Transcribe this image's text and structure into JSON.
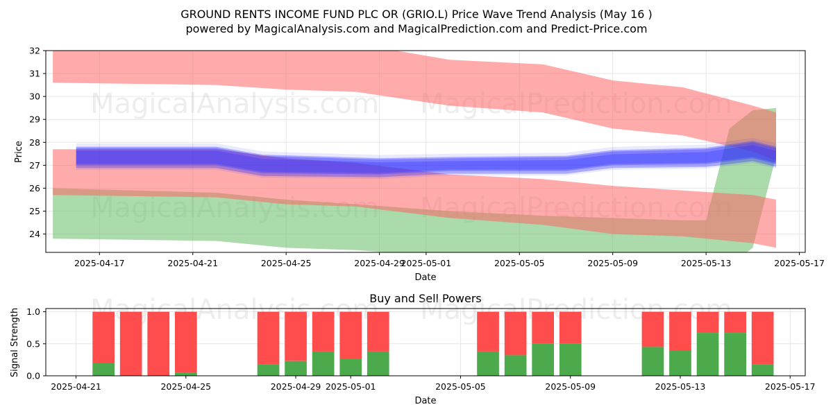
{
  "header": {
    "title_line1": "GROUND RENTS INCOME FUND PLC OR (GRIO.L) Price Wave Trend Analysis (May 16 )",
    "title_line2": "powered by MagicalAnalysis.com and MagicalPrediction.com and Predict-Price.com"
  },
  "watermarks": {
    "a": "MagicalAnalysis.com",
    "b": "MagicalPrediction.com"
  },
  "colors": {
    "red_band": "#ff6666",
    "green_band": "#66bb66",
    "blue_band": "#3333ff",
    "buy": "#4caa4c",
    "sell": "#ff4c4c"
  },
  "chart_data": [
    {
      "type": "area",
      "title": "",
      "xlabel": "Date",
      "ylabel": "Price",
      "xlim": [
        "2025-04-15",
        "2025-05-17"
      ],
      "ylim": [
        23.2,
        32
      ],
      "yticks": [
        24,
        25,
        26,
        27,
        28,
        29,
        30,
        31,
        32
      ],
      "xticks": [
        "2025-04-17",
        "2025-04-21",
        "2025-04-25",
        "2025-04-29",
        "2025-05-01",
        "2025-05-05",
        "2025-05-09",
        "2025-05-13",
        "2025-05-17"
      ],
      "grid": true,
      "series": [
        {
          "role": "upper-red-band",
          "x": [
            "2025-04-15",
            "2025-04-22",
            "2025-04-25",
            "2025-04-28",
            "2025-05-02",
            "2025-05-06",
            "2025-05-09",
            "2025-05-12",
            "2025-05-15",
            "2025-05-16"
          ],
          "upper": [
            32.5,
            32.5,
            32.4,
            32.3,
            31.6,
            31.4,
            30.7,
            30.4,
            29.6,
            29.3
          ],
          "lower": [
            30.6,
            30.5,
            30.3,
            30.2,
            29.6,
            29.3,
            28.6,
            28.3,
            27.6,
            27.2
          ]
        },
        {
          "role": "lower-red-band",
          "x": [
            "2025-04-15",
            "2025-04-22",
            "2025-04-25",
            "2025-04-28",
            "2025-05-02",
            "2025-05-06",
            "2025-05-09",
            "2025-05-12",
            "2025-05-15",
            "2025-05-16"
          ],
          "upper": [
            27.7,
            27.7,
            27.3,
            27.1,
            26.6,
            26.4,
            26.1,
            25.9,
            25.7,
            25.5
          ],
          "lower": [
            25.7,
            25.6,
            25.3,
            25.2,
            24.7,
            24.4,
            24.0,
            23.9,
            23.6,
            23.4
          ]
        },
        {
          "role": "green-band",
          "x": [
            "2025-04-15",
            "2025-04-22",
            "2025-04-25",
            "2025-04-28",
            "2025-05-02",
            "2025-05-06",
            "2025-05-09",
            "2025-05-12",
            "2025-05-13",
            "2025-05-14",
            "2025-05-15",
            "2025-05-16"
          ],
          "upper": [
            26.0,
            25.8,
            25.5,
            25.3,
            25.0,
            24.8,
            24.7,
            24.6,
            24.6,
            28.6,
            29.4,
            29.5
          ],
          "lower": [
            23.8,
            23.7,
            23.4,
            23.3,
            23.0,
            22.9,
            22.9,
            22.8,
            22.6,
            22.6,
            23.4,
            27.4
          ]
        },
        {
          "role": "blue-wave",
          "x": [
            "2025-04-16",
            "2025-04-22",
            "2025-04-24",
            "2025-04-29",
            "2025-05-02",
            "2025-05-07",
            "2025-05-09",
            "2025-05-13",
            "2025-05-15",
            "2025-05-16"
          ],
          "upper": [
            27.75,
            27.75,
            27.4,
            27.25,
            27.3,
            27.35,
            27.6,
            27.7,
            28.0,
            27.75
          ],
          "lower": [
            27.0,
            27.0,
            26.65,
            26.6,
            26.75,
            26.75,
            27.0,
            27.05,
            27.3,
            27.05
          ]
        }
      ]
    },
    {
      "type": "bar",
      "title": "Buy and Sell Powers",
      "xlabel": "Date",
      "ylabel": "Signal Strength",
      "xlim": [
        "2025-04-20",
        "2025-05-17"
      ],
      "ylim": [
        0,
        1.05
      ],
      "yticks": [
        0.0,
        0.5,
        1.0
      ],
      "xticks": [
        "2025-04-21",
        "2025-04-25",
        "2025-04-29",
        "2025-05-01",
        "2025-05-05",
        "2025-05-09",
        "2025-05-13",
        "2025-05-17"
      ],
      "categories": [
        "2025-04-22",
        "2025-04-23",
        "2025-04-24",
        "2025-04-25",
        "2025-04-28",
        "2025-04-29",
        "2025-04-30",
        "2025-05-01",
        "2025-05-02",
        "2025-05-06",
        "2025-05-07",
        "2025-05-08",
        "2025-05-09",
        "2025-05-12",
        "2025-05-13",
        "2025-05-14",
        "2025-05-15",
        "2025-05-16"
      ],
      "series": [
        {
          "name": "Buy",
          "values": [
            0.2,
            0.0,
            0.0,
            0.05,
            0.18,
            0.23,
            0.38,
            0.26,
            0.38,
            0.38,
            0.32,
            0.5,
            0.5,
            0.45,
            0.4,
            0.67,
            0.67,
            0.18
          ]
        },
        {
          "name": "Sell",
          "values": [
            0.8,
            1.0,
            1.0,
            0.95,
            0.82,
            0.77,
            0.62,
            0.74,
            0.62,
            0.62,
            0.68,
            0.5,
            0.5,
            0.55,
            0.6,
            0.33,
            0.33,
            0.82
          ]
        }
      ]
    }
  ]
}
